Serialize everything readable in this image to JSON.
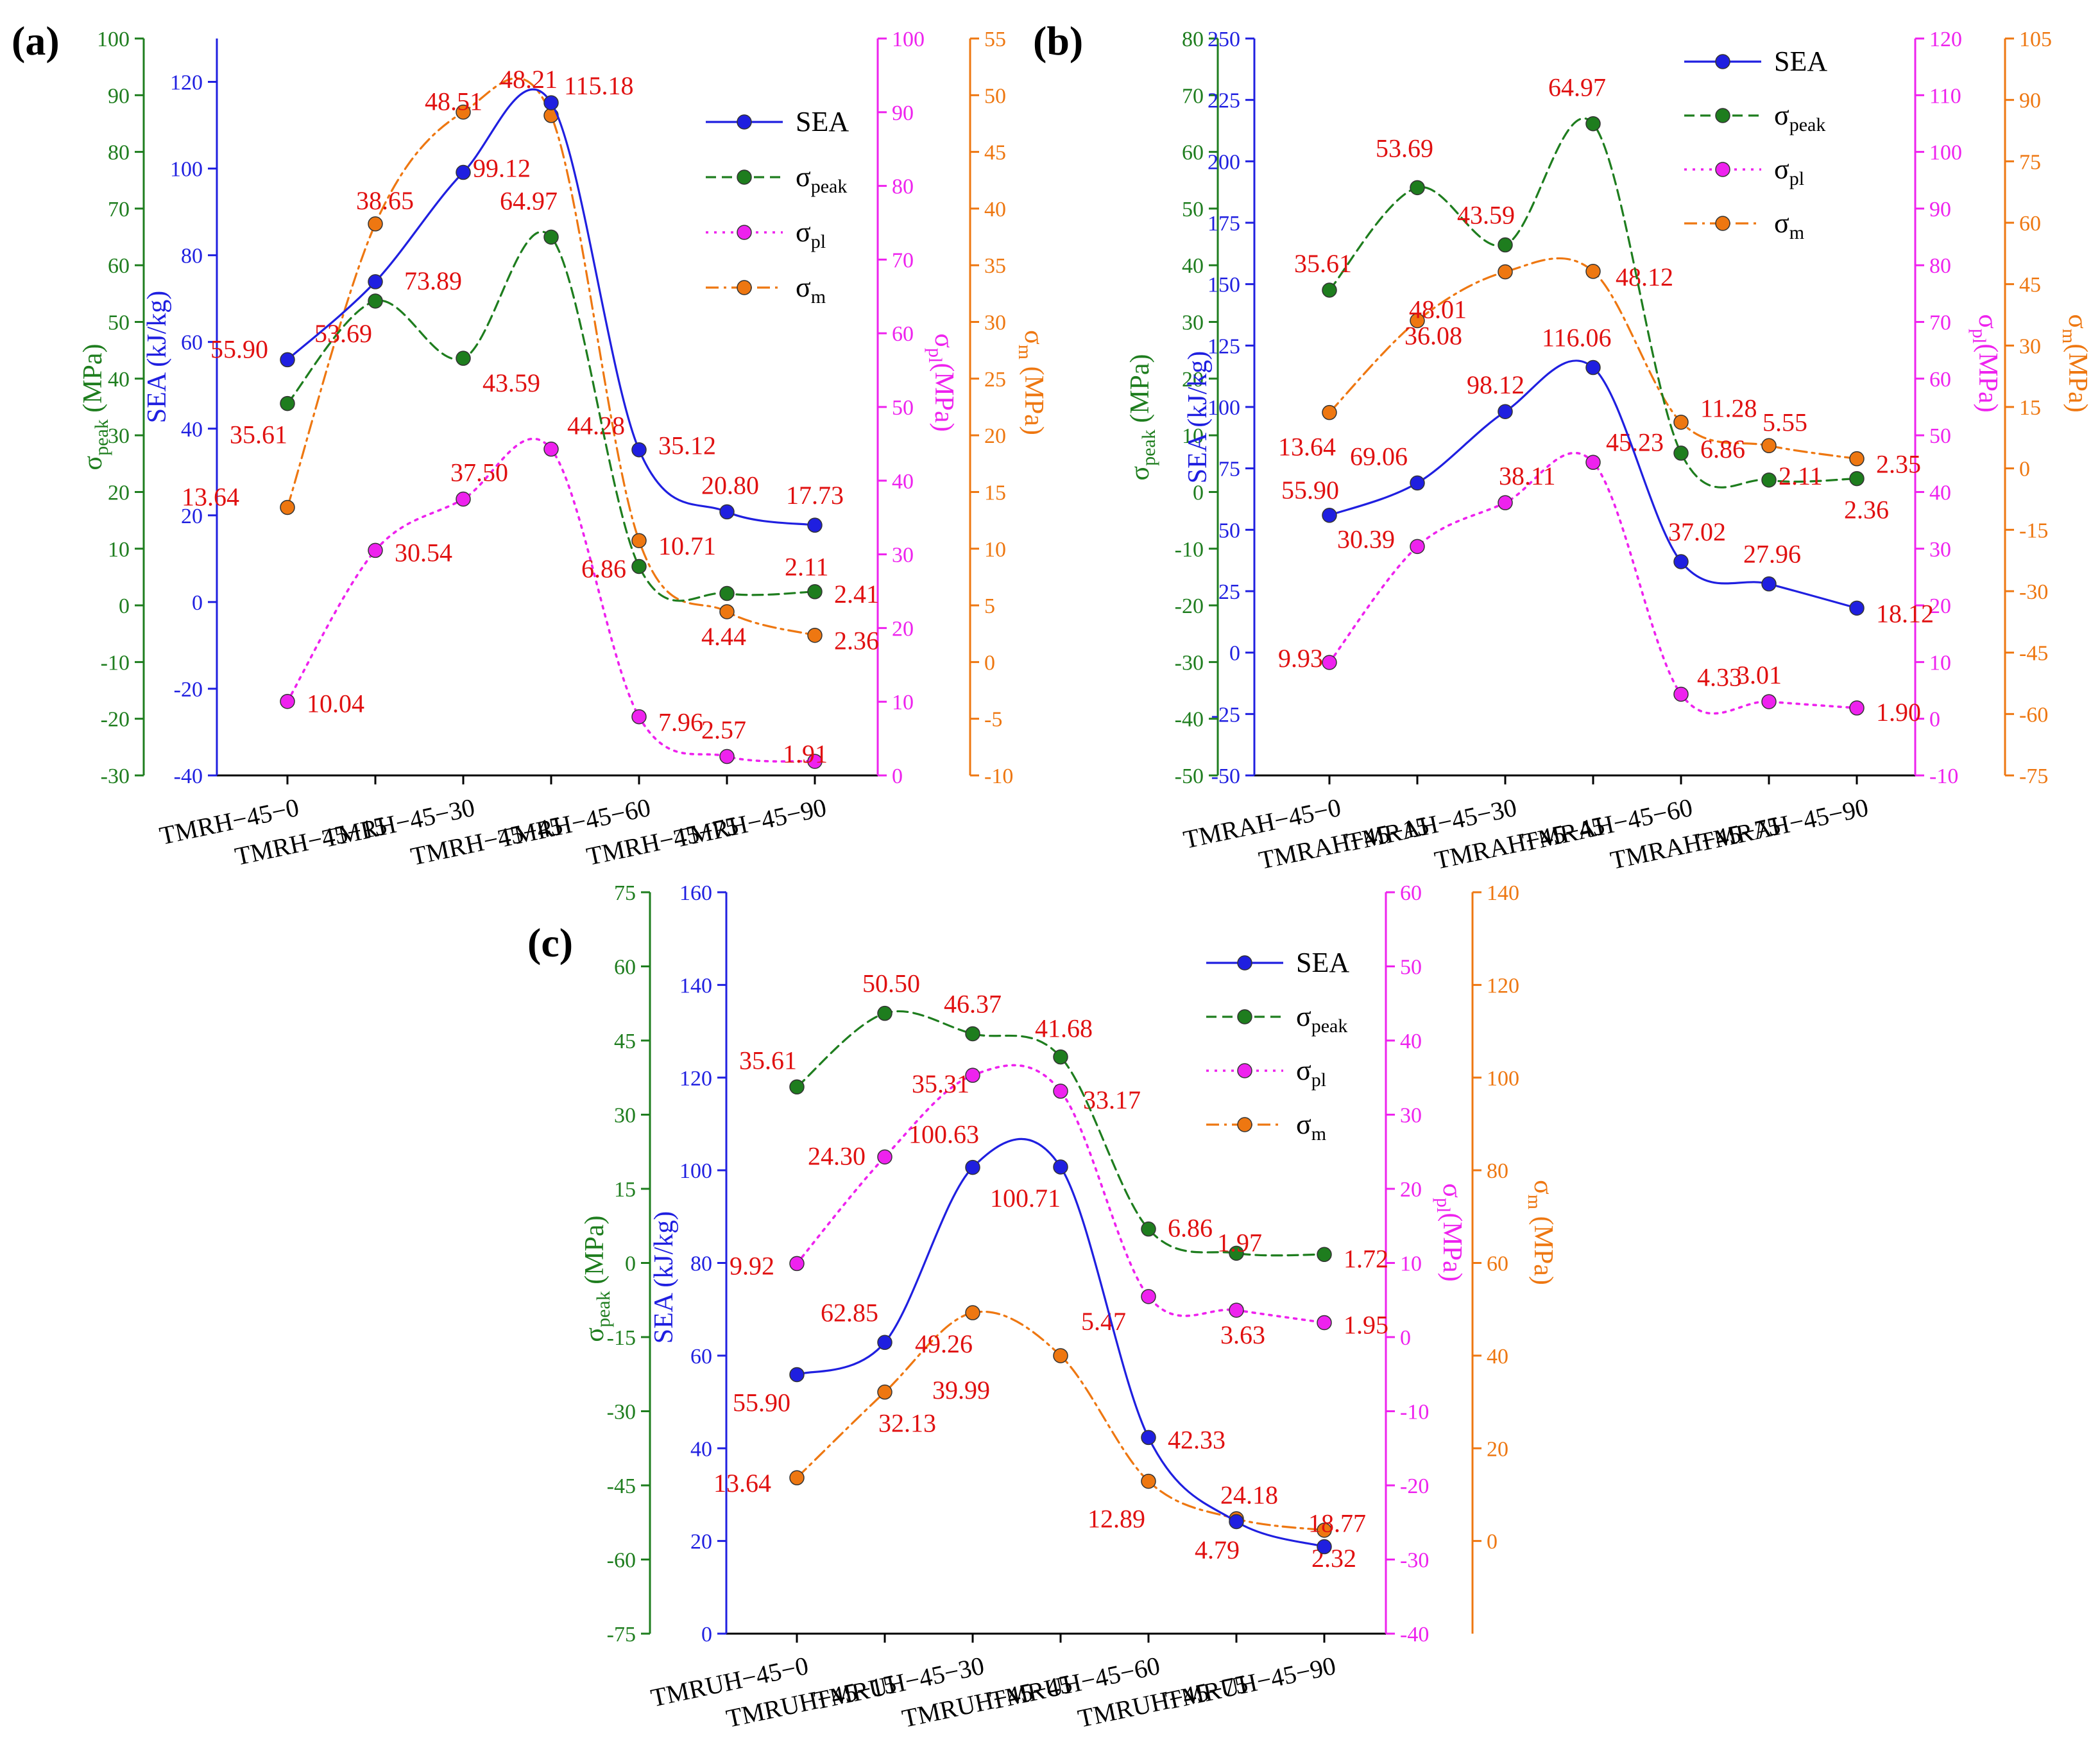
{
  "chart_data": [
    {
      "type": "line",
      "panel_label": "(a)",
      "categories": [
        "TMRH−45−0",
        "TMRH−45−15",
        "TMRH−45−30",
        "TMRH−45−45",
        "TMRH−45−60",
        "TMRH−45−75",
        "TMRH−45−90"
      ],
      "axes": {
        "SEA": {
          "label": "SEA (kJ/kg)",
          "range": [
            -40,
            130
          ],
          "ticks": [
            -40,
            -20,
            0,
            20,
            40,
            60,
            80,
            100,
            120
          ]
        },
        "peak": {
          "label_main": "σ",
          "label_sub": "peak",
          "label_tail": " (MPa)",
          "range": [
            -30,
            100
          ],
          "ticks": [
            -30,
            -20,
            -10,
            0,
            10,
            20,
            30,
            40,
            50,
            60,
            70,
            80,
            90,
            100
          ]
        },
        "pl": {
          "label_main": "σ",
          "label_sub": "pl",
          "label_tail": "(MPa)",
          "range": [
            0,
            100
          ],
          "ticks": [
            0,
            10,
            20,
            30,
            40,
            50,
            60,
            70,
            80,
            90,
            100
          ]
        },
        "m": {
          "label_main": "σ",
          "label_sub": "m",
          "label_tail": " (MPa)",
          "range": [
            -10,
            55
          ],
          "ticks": [
            -10,
            -5,
            0,
            5,
            10,
            15,
            20,
            25,
            30,
            35,
            40,
            45,
            50,
            55
          ]
        }
      },
      "series": [
        {
          "key": "SEA",
          "name": "SEA",
          "sub": "",
          "values": [
            55.9,
            73.89,
            99.12,
            115.18,
            35.12,
            20.8,
            17.73
          ],
          "labels": [
            "55.90",
            "73.89",
            "99.12",
            "115.18",
            "35.12",
            "20.80",
            "17.73"
          ]
        },
        {
          "key": "peak",
          "name": "σ",
          "sub": "peak",
          "values": [
            35.61,
            53.69,
            43.59,
            64.97,
            6.86,
            2.11,
            2.41
          ],
          "labels": [
            "35.61",
            "53.69",
            "43.59",
            "64.97",
            "6.86",
            "2.11",
            "2.41"
          ]
        },
        {
          "key": "pl",
          "name": "σ",
          "sub": "pl",
          "values": [
            10.04,
            30.54,
            37.5,
            44.28,
            7.96,
            2.57,
            1.91
          ],
          "labels": [
            "10.04",
            "30.54",
            "37.50",
            "44.28",
            "7.96",
            "2.57",
            "1.91"
          ]
        },
        {
          "key": "m",
          "name": "σ",
          "sub": "m",
          "values": [
            13.64,
            38.65,
            48.51,
            48.21,
            10.71,
            4.44,
            2.36
          ],
          "labels": [
            "13.64",
            "38.65",
            "48.51",
            "48.21",
            "10.71",
            "4.44",
            "2.36"
          ]
        }
      ]
    },
    {
      "type": "line",
      "panel_label": "(b)",
      "categories": [
        "TMRAH−45−0",
        "TMRAH−45−15",
        "TMRAH−45−30",
        "TMRAH−45−45",
        "TMRAH−45−60",
        "TMRAH−45−75",
        "TMRAH−45−90"
      ],
      "axes": {
        "SEA": {
          "label": "SEA (kJ/kg)",
          "range": [
            -50,
            250
          ],
          "ticks": [
            -50,
            -25,
            0,
            25,
            50,
            75,
            100,
            125,
            150,
            175,
            200,
            225,
            250
          ]
        },
        "peak": {
          "label_main": "σ",
          "label_sub": "peak",
          "label_tail": " (MPa)",
          "range": [
            -50,
            80
          ],
          "ticks": [
            -50,
            -40,
            -30,
            -20,
            -10,
            0,
            10,
            20,
            30,
            40,
            50,
            60,
            70,
            80
          ]
        },
        "pl": {
          "label_main": "σ",
          "label_sub": "pl",
          "label_tail": "(MPa)",
          "range": [
            -10,
            120
          ],
          "ticks": [
            -10,
            0,
            10,
            20,
            30,
            40,
            50,
            60,
            70,
            80,
            90,
            100,
            110,
            120
          ]
        },
        "m": {
          "label_main": "σ",
          "label_sub": "m",
          "label_tail": "(MPa)",
          "range": [
            -75,
            105
          ],
          "ticks": [
            -75,
            -60,
            -45,
            -30,
            -15,
            0,
            15,
            30,
            45,
            60,
            75,
            90,
            105
          ]
        }
      },
      "series": [
        {
          "key": "SEA",
          "name": "SEA",
          "sub": "",
          "values": [
            55.9,
            69.06,
            98.12,
            116.06,
            37.02,
            27.96,
            18.12
          ],
          "labels": [
            "55.90",
            "69.06",
            "98.12",
            "116.06",
            "37.02",
            "27.96",
            "18.12"
          ]
        },
        {
          "key": "peak",
          "name": "σ",
          "sub": "peak",
          "values": [
            35.61,
            53.69,
            43.59,
            64.97,
            6.86,
            2.11,
            2.36
          ],
          "labels": [
            "35.61",
            "53.69",
            "43.59",
            "64.97",
            "6.86",
            "2.11",
            "2.36"
          ]
        },
        {
          "key": "pl",
          "name": "σ",
          "sub": "pl",
          "values": [
            9.93,
            30.39,
            38.11,
            45.23,
            4.33,
            3.01,
            1.9
          ],
          "labels": [
            "9.93",
            "30.39",
            "38.11",
            "45.23",
            "4.33",
            "3.01",
            "1.90"
          ]
        },
        {
          "key": "m",
          "name": "σ",
          "sub": "m",
          "values": [
            13.64,
            36.08,
            48.01,
            48.12,
            11.28,
            5.55,
            2.35
          ],
          "labels": [
            "13.64",
            "36.08",
            "48.01",
            "48.12",
            "11.28",
            "5.55",
            "2.35"
          ]
        }
      ]
    },
    {
      "type": "line",
      "panel_label": "(c)",
      "categories": [
        "TMRUH−45−0",
        "TMRUH−45−15",
        "TMRUH−45−30",
        "TMRUH−45−45",
        "TMRUH−45−60",
        "TMRUH−45−75",
        "TMRUH−45−90"
      ],
      "axes": {
        "SEA": {
          "label": "SEA (kJ/kg)",
          "range": [
            0,
            160
          ],
          "ticks": [
            0,
            20,
            40,
            60,
            80,
            100,
            120,
            140,
            160
          ]
        },
        "peak": {
          "label_main": "σ",
          "label_sub": "peak",
          "label_tail": " (MPa)",
          "range": [
            -75,
            75
          ],
          "ticks": [
            -75,
            -60,
            -45,
            -30,
            -15,
            0,
            15,
            30,
            45,
            60,
            75
          ]
        },
        "pl": {
          "label_main": "σ",
          "label_sub": "pl",
          "label_tail": "(MPa)",
          "range": [
            -40,
            60
          ],
          "ticks": [
            -40,
            -30,
            -20,
            -10,
            0,
            10,
            20,
            30,
            40,
            50,
            60
          ]
        },
        "m": {
          "label_main": "σ",
          "label_sub": "m",
          "label_tail": " (MPa)",
          "range": [
            -20,
            140
          ],
          "ticks": [
            0,
            20,
            40,
            60,
            80,
            100,
            120,
            140
          ]
        }
      },
      "series": [
        {
          "key": "SEA",
          "name": "SEA",
          "sub": "",
          "values": [
            55.9,
            62.85,
            100.63,
            100.71,
            42.33,
            24.18,
            18.77
          ],
          "labels": [
            "55.90",
            "62.85",
            "100.63",
            "100.71",
            "42.33",
            "24.18",
            "18.77"
          ]
        },
        {
          "key": "peak",
          "name": "σ",
          "sub": "peak",
          "values": [
            35.61,
            50.5,
            46.37,
            41.68,
            6.86,
            1.97,
            1.72
          ],
          "labels": [
            "35.61",
            "50.50",
            "46.37",
            "41.68",
            "6.86",
            "1.97",
            "1.72"
          ]
        },
        {
          "key": "pl",
          "name": "σ",
          "sub": "pl",
          "values": [
            9.92,
            24.3,
            35.31,
            33.17,
            5.47,
            3.63,
            1.95
          ],
          "labels": [
            "9.92",
            "24.30",
            "35.31",
            "33.17",
            "5.47",
            "3.63",
            "1.95"
          ]
        },
        {
          "key": "m",
          "name": "σ",
          "sub": "m",
          "values": [
            13.64,
            32.13,
            49.26,
            39.99,
            12.89,
            4.79,
            2.32
          ],
          "labels": [
            "13.64",
            "32.13",
            "49.26",
            "39.99",
            "12.89",
            "4.79",
            "2.32"
          ]
        }
      ]
    }
  ],
  "colors": {
    "SEA": "#1f1fe0",
    "peak": "#1e7d1e",
    "pl": "#ee22ee",
    "m": "#ee7711",
    "label": "#e01010",
    "axis": "#000000"
  }
}
